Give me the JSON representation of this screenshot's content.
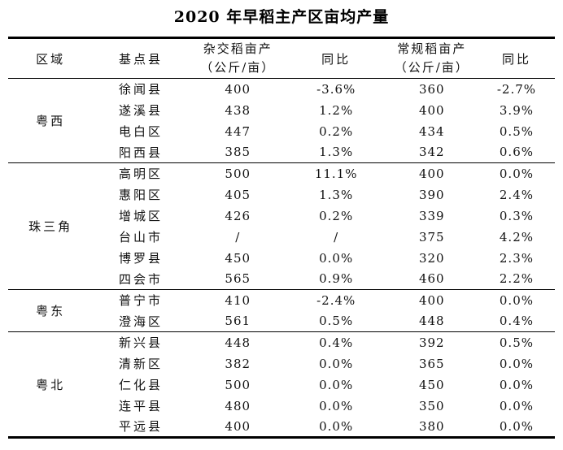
{
  "chart_data": {
    "type": "table",
    "title": "2020 年早稻主产区亩均产量",
    "headers": {
      "region": "区域",
      "county": "基点县",
      "hybrid_line1": "杂交稻亩产",
      "hybrid_line2": "（公斤/亩）",
      "hybrid_yoy": "同比",
      "conv_line1": "常规稻亩产",
      "conv_line2": "（公斤/亩）",
      "conv_yoy": "同比"
    },
    "columns": [
      "区域",
      "基点县",
      "杂交稻亩产（公斤/亩）",
      "同比",
      "常规稻亩产（公斤/亩）",
      "同比"
    ],
    "groups": [
      {
        "region": "粤西",
        "rows": [
          {
            "county": "徐闻县",
            "hybrid": "400",
            "hybrid_yoy": "-3.6%",
            "conv": "360",
            "conv_yoy": "-2.7%"
          },
          {
            "county": "遂溪县",
            "hybrid": "438",
            "hybrid_yoy": "1.2%",
            "conv": "400",
            "conv_yoy": "3.9%"
          },
          {
            "county": "电白区",
            "hybrid": "447",
            "hybrid_yoy": "0.2%",
            "conv": "434",
            "conv_yoy": "0.5%"
          },
          {
            "county": "阳西县",
            "hybrid": "385",
            "hybrid_yoy": "1.3%",
            "conv": "342",
            "conv_yoy": "0.6%"
          }
        ]
      },
      {
        "region": "珠三角",
        "rows": [
          {
            "county": "高明区",
            "hybrid": "500",
            "hybrid_yoy": "11.1%",
            "conv": "400",
            "conv_yoy": "0.0%"
          },
          {
            "county": "惠阳区",
            "hybrid": "405",
            "hybrid_yoy": "1.3%",
            "conv": "390",
            "conv_yoy": "2.4%"
          },
          {
            "county": "增城区",
            "hybrid": "426",
            "hybrid_yoy": "0.2%",
            "conv": "339",
            "conv_yoy": "0.3%"
          },
          {
            "county": "台山市",
            "hybrid": "/",
            "hybrid_yoy": "/",
            "conv": "375",
            "conv_yoy": "4.2%"
          },
          {
            "county": "博罗县",
            "hybrid": "450",
            "hybrid_yoy": "0.0%",
            "conv": "320",
            "conv_yoy": "2.3%"
          },
          {
            "county": "四会市",
            "hybrid": "565",
            "hybrid_yoy": "0.9%",
            "conv": "460",
            "conv_yoy": "2.2%"
          }
        ]
      },
      {
        "region": "粤东",
        "rows": [
          {
            "county": "普宁市",
            "hybrid": "410",
            "hybrid_yoy": "-2.4%",
            "conv": "400",
            "conv_yoy": "0.0%"
          },
          {
            "county": "澄海区",
            "hybrid": "561",
            "hybrid_yoy": "0.5%",
            "conv": "448",
            "conv_yoy": "0.4%"
          }
        ]
      },
      {
        "region": "粤北",
        "rows": [
          {
            "county": "新兴县",
            "hybrid": "448",
            "hybrid_yoy": "0.4%",
            "conv": "392",
            "conv_yoy": "0.5%"
          },
          {
            "county": "清新区",
            "hybrid": "382",
            "hybrid_yoy": "0.0%",
            "conv": "365",
            "conv_yoy": "0.0%"
          },
          {
            "county": "仁化县",
            "hybrid": "500",
            "hybrid_yoy": "0.0%",
            "conv": "450",
            "conv_yoy": "0.0%"
          },
          {
            "county": "连平县",
            "hybrid": "480",
            "hybrid_yoy": "0.0%",
            "conv": "350",
            "conv_yoy": "0.0%"
          },
          {
            "county": "平远县",
            "hybrid": "400",
            "hybrid_yoy": "0.0%",
            "conv": "380",
            "conv_yoy": "0.0%"
          }
        ]
      }
    ]
  }
}
